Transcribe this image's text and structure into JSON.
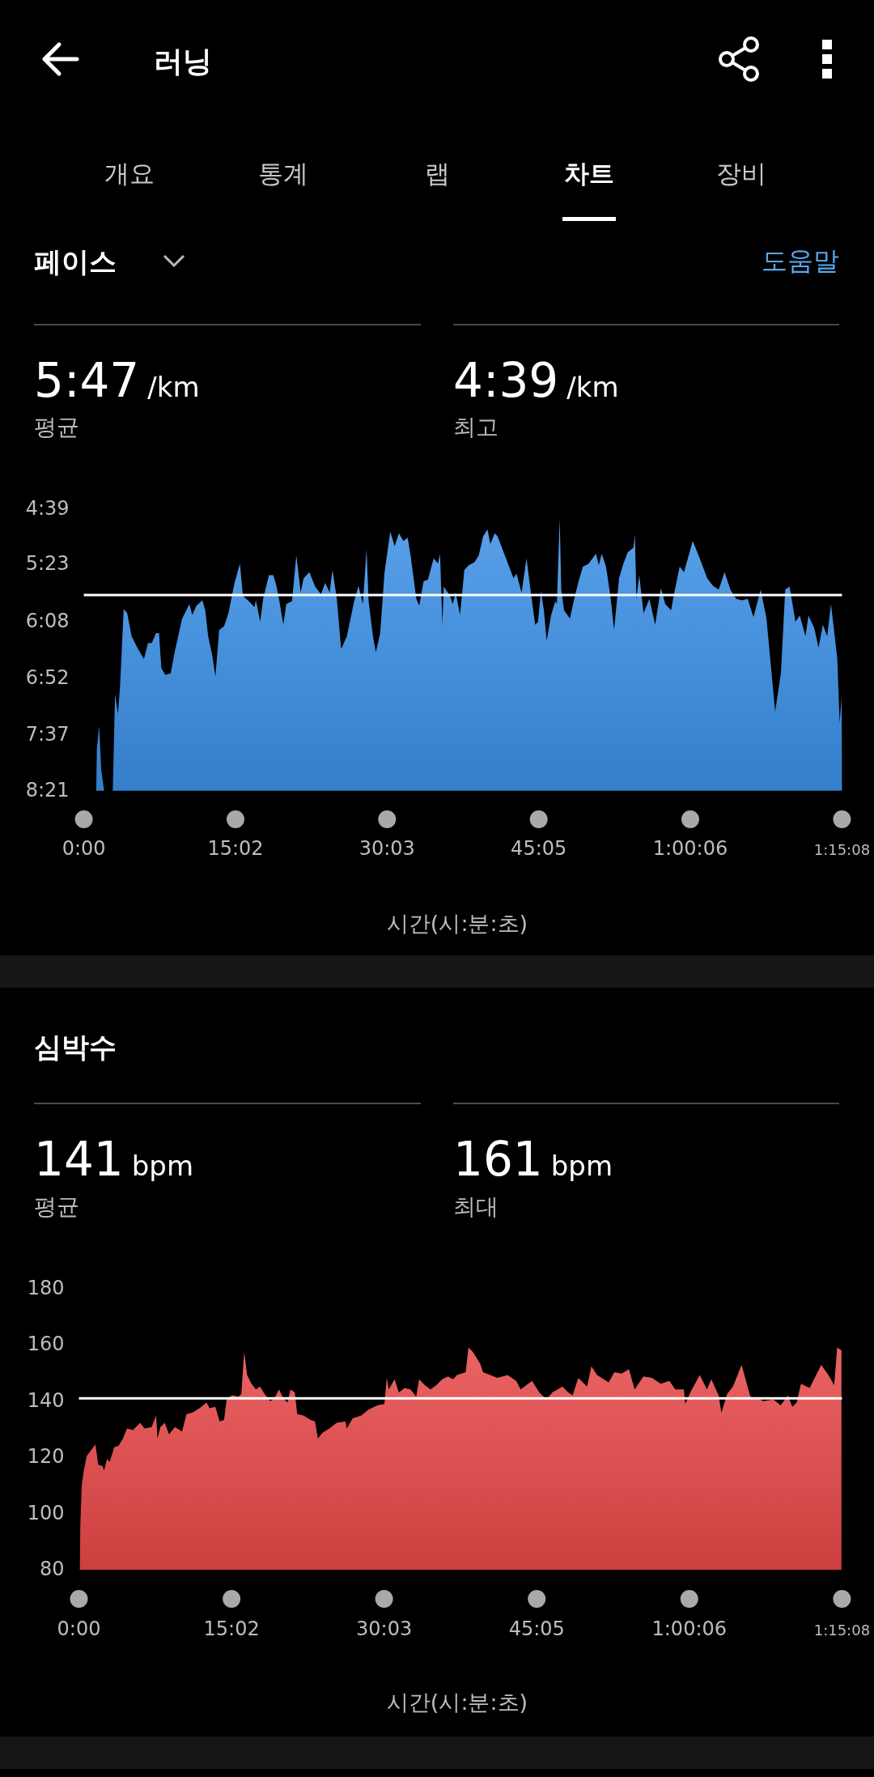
{
  "chart_data": [
    {
      "type": "area",
      "title": "페이스",
      "xlabel": "시간(시:분:초)",
      "annotations": [
        "러닝",
        "개요",
        "통계",
        "랩",
        "차트",
        "장비",
        "도움말",
        "5:47 /km",
        "평균",
        "4:39 /km",
        "최고"
      ],
      "xlim": [
        0,
        75.13
      ],
      "xticks": [
        {
          "value": 0,
          "label": "0:00"
        },
        {
          "value": 15.03,
          "label": "15:02"
        },
        {
          "value": 30.05,
          "label": "30:03"
        },
        {
          "value": 45.08,
          "label": "45:05"
        },
        {
          "value": 60.1,
          "label": "1:00:06"
        },
        {
          "value": 75.13,
          "label": "1:15:08"
        }
      ],
      "ylim": [
        8.35,
        4.65
      ],
      "yticks": [
        {
          "value": 4.65,
          "label": "4:39"
        },
        {
          "value": 5.38,
          "label": "5:23"
        },
        {
          "value": 6.13,
          "label": "6:08"
        },
        {
          "value": 6.87,
          "label": "6:52"
        },
        {
          "value": 7.62,
          "label": "7:37"
        },
        {
          "value": 8.35,
          "label": "8:21"
        }
      ],
      "ref_lines": [
        {
          "axis": "y",
          "value": 5.78,
          "color": "#ffffff"
        }
      ],
      "series": [
        {
          "color": "#3b8fe6",
          "x": [
            1.23,
            1.29,
            1.52,
            1.72,
            2.01,
            2.87,
            3.09,
            3.38,
            3.58,
            3.72,
            3.95,
            4.3,
            4.73,
            5.3,
            5.96,
            6.36,
            6.73,
            7.16,
            7.45,
            7.68,
            8.08,
            8.6,
            9.03,
            9.74,
            10.46,
            10.74,
            11.17,
            11.75,
            12.03,
            12.32,
            12.75,
            13.04,
            13.41,
            13.9,
            14.33,
            14.9,
            15.47,
            15.76,
            16.33,
            16.91,
            17.05,
            17.48,
            17.77,
            18.34,
            18.77,
            19.05,
            19.34,
            19.77,
            20.06,
            20.63,
            21.06,
            21.49,
            21.78,
            22.35,
            22.92,
            23.5,
            23.93,
            24.36,
            24.64,
            25.07,
            25.5,
            26.07,
            26.79,
            27.22,
            27.65,
            28.02,
            28.22,
            28.65,
            28.94,
            29.37,
            29.8,
            30.37,
            30.8,
            31.23,
            31.66,
            32.09,
            32.38,
            32.95,
            33.24,
            33.67,
            34.1,
            34.67,
            35.1,
            35.3,
            35.53,
            35.67,
            36.28,
            36.56,
            36.85,
            37.28,
            37.71,
            38.14,
            38.71,
            39.14,
            39.57,
            40.0,
            40.29,
            40.72,
            41.0,
            41.72,
            42.58,
            42.87,
            43.38,
            43.87,
            44.3,
            44.73,
            45.01,
            45.3,
            45.59,
            45.87,
            46.3,
            46.73,
            46.88,
            47.16,
            47.31,
            47.59,
            48.17,
            48.6,
            49.03,
            49.46,
            50.03,
            50.75,
            51.03,
            51.32,
            51.75,
            52.18,
            52.55,
            53.04,
            53.47,
            53.9,
            54.47,
            54.61,
            54.76,
            55.04,
            55.47,
            56.05,
            56.62,
            57.19,
            57.62,
            58.2,
            58.48,
            59.05,
            59.48,
            60.34,
            60.92,
            61.78,
            62.35,
            62.92,
            63.5,
            64.07,
            64.64,
            65.21,
            65.79,
            66.36,
            67.08,
            67.65,
            68.51,
            69.08,
            69.51,
            69.94,
            70.52,
            70.95,
            71.52,
            71.81,
            72.38,
            72.81,
            73.24,
            73.67,
            74.04,
            74.38,
            74.67,
            74.9,
            75.1,
            75.13
          ],
          "values": [
            8.35,
            7.8,
            7.5,
            8.07,
            8.35,
            8.35,
            7.08,
            7.34,
            7.0,
            6.62,
            5.96,
            6.02,
            6.32,
            6.47,
            6.62,
            6.41,
            6.41,
            6.28,
            6.28,
            6.74,
            6.83,
            6.81,
            6.51,
            6.09,
            5.9,
            6.04,
            5.92,
            5.85,
            5.98,
            6.32,
            6.59,
            6.85,
            6.24,
            6.19,
            6.02,
            5.64,
            5.37,
            5.79,
            5.86,
            5.94,
            5.85,
            6.13,
            5.83,
            5.52,
            5.52,
            5.64,
            5.83,
            6.17,
            5.9,
            5.86,
            5.26,
            5.75,
            5.56,
            5.48,
            5.67,
            5.77,
            5.62,
            5.75,
            5.45,
            5.83,
            6.49,
            6.32,
            5.86,
            5.66,
            5.9,
            5.18,
            5.86,
            6.32,
            6.53,
            6.28,
            5.48,
            4.95,
            5.14,
            4.97,
            5.07,
            5.03,
            5.26,
            5.83,
            5.92,
            5.6,
            5.58,
            5.3,
            5.37,
            5.24,
            6.17,
            5.67,
            5.79,
            5.9,
            5.75,
            6.04,
            5.45,
            5.39,
            5.35,
            5.26,
            5.01,
            4.92,
            5.11,
            4.97,
            5.01,
            5.26,
            5.56,
            5.5,
            5.75,
            5.3,
            5.75,
            6.17,
            6.13,
            5.73,
            5.98,
            6.38,
            6.05,
            5.86,
            5.9,
            4.78,
            5.71,
            5.98,
            6.09,
            5.83,
            5.6,
            5.41,
            5.37,
            5.24,
            5.39,
            5.24,
            5.41,
            5.79,
            6.24,
            5.56,
            5.37,
            5.22,
            5.16,
            4.99,
            5.83,
            5.52,
            6.02,
            5.83,
            6.17,
            5.69,
            5.9,
            5.98,
            5.77,
            5.41,
            5.48,
            5.07,
            5.26,
            5.56,
            5.66,
            5.71,
            5.48,
            5.71,
            5.83,
            5.85,
            5.83,
            6.07,
            5.71,
            6.09,
            7.31,
            6.81,
            5.71,
            5.67,
            6.13,
            6.05,
            6.32,
            6.05,
            6.21,
            6.47,
            6.17,
            6.32,
            5.9,
            6.28,
            6.62,
            7.46,
            7.12,
            8.35
          ]
        }
      ]
    },
    {
      "type": "area",
      "title": "심박수",
      "xlabel": "시간(시:분:초)",
      "annotations": [
        "141 bpm",
        "평균",
        "161 bpm",
        "최대"
      ],
      "xlim": [
        0,
        75.13
      ],
      "xticks": [
        {
          "value": 0,
          "label": "0:00"
        },
        {
          "value": 15.03,
          "label": "15:02"
        },
        {
          "value": 30.05,
          "label": "30:03"
        },
        {
          "value": 45.08,
          "label": "45:05"
        },
        {
          "value": 60.1,
          "label": "1:00:06"
        },
        {
          "value": 75.13,
          "label": "1:15:08"
        }
      ],
      "ylim": [
        80,
        180
      ],
      "yticks": [
        80,
        100,
        120,
        140,
        160,
        180
      ],
      "ref_lines": [
        {
          "axis": "y",
          "value": 141,
          "color": "#ffffff"
        }
      ],
      "series": [
        {
          "color": "#e84848",
          "x": [
            0.09,
            0.14,
            0.28,
            0.48,
            0.77,
            1.2,
            1.62,
            1.91,
            2.33,
            2.48,
            2.76,
            3.04,
            3.47,
            3.9,
            4.33,
            4.75,
            5.32,
            6.03,
            6.46,
            7.17,
            7.6,
            7.74,
            8.02,
            8.45,
            8.88,
            9.45,
            10.16,
            10.59,
            11.16,
            11.87,
            12.58,
            12.86,
            13.43,
            13.86,
            14.29,
            14.57,
            15.14,
            15.71,
            15.99,
            16.28,
            16.56,
            16.99,
            17.42,
            17.84,
            18.27,
            18.84,
            19.27,
            19.69,
            20.12,
            20.55,
            20.83,
            21.26,
            21.49,
            22.11,
            22.82,
            23.25,
            23.53,
            23.96,
            24.67,
            25.38,
            26.24,
            26.38,
            26.95,
            27.8,
            28.51,
            29.37,
            30.08,
            30.31,
            30.51,
            31.08,
            31.5,
            32.07,
            32.64,
            33.21,
            33.5,
            34.06,
            34.63,
            35.2,
            35.77,
            36.34,
            36.85,
            37.22,
            38.08,
            38.36,
            38.79,
            39.5,
            39.79,
            40.5,
            41.21,
            42.21,
            43.06,
            43.49,
            44.62,
            45.33,
            46.05,
            46.61,
            47.61,
            48.18,
            48.61,
            49.17,
            50.03,
            50.46,
            51.02,
            52.16,
            52.73,
            53.44,
            54.15,
            54.72,
            55.58,
            56.43,
            57.29,
            58.14,
            58.71,
            59.56,
            59.7,
            60.27,
            61.13,
            61.84,
            62.27,
            62.98,
            63.26,
            63.83,
            64.4,
            65.25,
            66.11,
            66.82,
            67.39,
            68.38,
            69.1,
            69.81,
            70.24,
            70.67,
            71.1,
            71.95,
            73.09,
            73.8,
            74.37,
            74.66,
            75.08
          ],
          "values": [
            80,
            95.8,
            110.2,
            115.3,
            120.5,
            122.5,
            124.6,
            117.4,
            116.9,
            115.3,
            119.4,
            118.4,
            123.6,
            124.1,
            126.7,
            130.3,
            129.7,
            132.3,
            130.3,
            130.8,
            134.9,
            126.7,
            130.8,
            132.3,
            128.2,
            130.8,
            129.2,
            135.4,
            135.9,
            137.5,
            139.5,
            137.5,
            138.0,
            132.8,
            133.3,
            141.1,
            142.1,
            141.6,
            142.6,
            157.5,
            149.3,
            146.2,
            144.2,
            145.2,
            142.6,
            140.0,
            141.1,
            144.2,
            141.1,
            139.5,
            144.2,
            143.1,
            135.4,
            134.9,
            133.3,
            132.8,
            126.7,
            128.7,
            130.3,
            132.3,
            132.8,
            130.3,
            133.9,
            134.9,
            137.0,
            138.5,
            139.0,
            148.3,
            144.2,
            147.8,
            143.1,
            144.7,
            144.2,
            141.6,
            147.8,
            145.7,
            144.2,
            145.7,
            147.8,
            148.8,
            147.8,
            149.3,
            150.3,
            159.1,
            157.5,
            153.4,
            150.3,
            149.3,
            148.3,
            149.3,
            147.2,
            144.2,
            147.2,
            143.1,
            140.6,
            143.1,
            145.2,
            143.1,
            142.1,
            148.3,
            145.2,
            152.4,
            149.3,
            146.7,
            150.3,
            149.8,
            151.4,
            144.2,
            148.8,
            148.3,
            146.2,
            147.2,
            144.2,
            144.2,
            139.0,
            143.6,
            149.3,
            144.2,
            147.8,
            142.1,
            135.9,
            142.6,
            145.2,
            152.9,
            141.6,
            141.1,
            140.0,
            140.6,
            138.5,
            142.1,
            138.0,
            139.5,
            146.2,
            144.7,
            152.9,
            149.3,
            145.7,
            159.1,
            158.1
          ]
        }
      ]
    }
  ]
}
